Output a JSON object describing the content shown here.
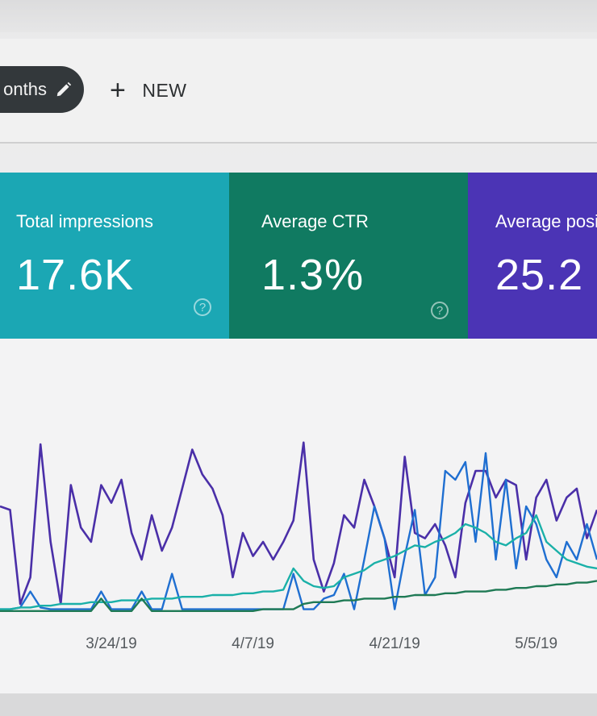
{
  "toolbar": {
    "date_chip_label": "onths",
    "new_button_label": "NEW"
  },
  "cards": [
    {
      "label": "Total impressions",
      "value": "17.6K",
      "color": "#1ba7b4"
    },
    {
      "label": "Average CTR",
      "value": "1.3%",
      "color": "#107a61"
    },
    {
      "label": "Average positi",
      "value": "25.2",
      "color": "#4b34b5"
    }
  ],
  "help_glyph": "?",
  "icons": {
    "edit": "pencil-icon",
    "add": "plus-icon",
    "help": "help-circle-icon"
  },
  "chart_data": {
    "type": "line",
    "x_tick_labels": [
      "3/24/19",
      "4/7/19",
      "4/21/19",
      "5/5/19"
    ],
    "x": [
      "3/13",
      "3/14",
      "3/15",
      "3/16",
      "3/17",
      "3/18",
      "3/19",
      "3/20",
      "3/21",
      "3/22",
      "3/23",
      "3/24",
      "3/25",
      "3/26",
      "3/27",
      "3/28",
      "3/29",
      "3/30",
      "3/31",
      "4/1",
      "4/2",
      "4/3",
      "4/4",
      "4/5",
      "4/6",
      "4/7",
      "4/8",
      "4/9",
      "4/10",
      "4/11",
      "4/12",
      "4/13",
      "4/14",
      "4/15",
      "4/16",
      "4/17",
      "4/18",
      "4/19",
      "4/20",
      "4/21",
      "4/22",
      "4/23",
      "4/24",
      "4/25",
      "4/26",
      "4/27",
      "4/28",
      "4/29",
      "4/30",
      "5/1",
      "5/2",
      "5/3",
      "5/4",
      "5/5",
      "5/6",
      "5/7",
      "5/8",
      "5/9",
      "5/10",
      "5/11"
    ],
    "series": [
      {
        "color": "#4a2fa8",
        "values": [
          60,
          58,
          5,
          20,
          95,
          40,
          5,
          72,
          48,
          40,
          72,
          62,
          75,
          45,
          30,
          55,
          35,
          48,
          70,
          92,
          78,
          70,
          55,
          20,
          45,
          32,
          40,
          30,
          40,
          52,
          96,
          30,
          12,
          28,
          55,
          48,
          75,
          60,
          42,
          20,
          88,
          45,
          42,
          50,
          38,
          20,
          62,
          80,
          80,
          65,
          75,
          72,
          30,
          65,
          75,
          52,
          65,
          70,
          42,
          58
        ]
      },
      {
        "color": "#1f6fd1",
        "values": [
          2,
          2,
          3,
          12,
          3,
          2,
          2,
          2,
          2,
          2,
          12,
          2,
          2,
          2,
          12,
          2,
          2,
          22,
          2,
          2,
          2,
          2,
          2,
          2,
          2,
          2,
          2,
          2,
          2,
          22,
          2,
          2,
          8,
          10,
          22,
          2,
          30,
          60,
          42,
          2,
          32,
          58,
          10,
          20,
          80,
          75,
          85,
          40,
          90,
          30,
          75,
          25,
          60,
          50,
          30,
          20,
          40,
          30,
          50,
          30
        ]
      },
      {
        "color": "#1ab0a8",
        "values": [
          2,
          2,
          3,
          3,
          4,
          4,
          5,
          5,
          5,
          6,
          6,
          6,
          7,
          7,
          7,
          8,
          8,
          8,
          9,
          9,
          9,
          10,
          10,
          10,
          11,
          11,
          12,
          12,
          13,
          25,
          18,
          15,
          14,
          15,
          20,
          22,
          24,
          28,
          30,
          32,
          35,
          38,
          37,
          40,
          42,
          45,
          50,
          48,
          45,
          40,
          38,
          42,
          45,
          55,
          40,
          35,
          30,
          28,
          26,
          25
        ]
      },
      {
        "color": "#1f7a55",
        "values": [
          1,
          1,
          1,
          1,
          1,
          1,
          1,
          1,
          1,
          1,
          8,
          1,
          1,
          1,
          8,
          1,
          1,
          1,
          1,
          1,
          1,
          1,
          1,
          1,
          1,
          1,
          2,
          2,
          2,
          2,
          5,
          6,
          6,
          6,
          7,
          7,
          8,
          8,
          8,
          9,
          9,
          10,
          10,
          10,
          11,
          11,
          12,
          12,
          12,
          13,
          13,
          14,
          14,
          15,
          15,
          16,
          16,
          17,
          17,
          18
        ]
      }
    ],
    "grid": false,
    "legend": "none"
  }
}
